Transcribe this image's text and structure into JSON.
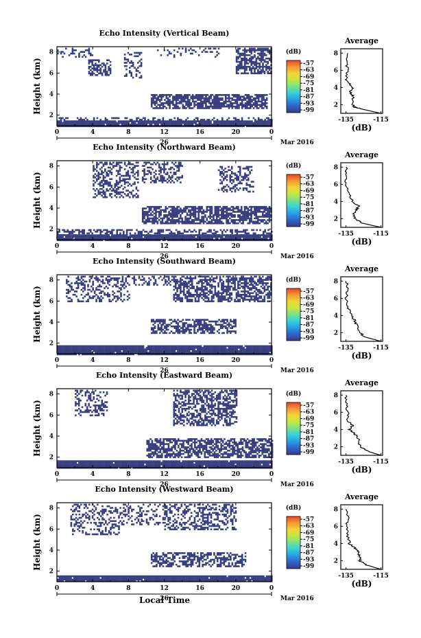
{
  "colors": {
    "echo": "#383f7e",
    "colorbar": [
      "#3a3a8c",
      "#2f63c8",
      "#2a9ee0",
      "#38d0d8",
      "#7be08a",
      "#c2e842",
      "#f4d43a",
      "#f59a35",
      "#e8452e"
    ]
  },
  "colorbar": {
    "unit_label": "(dB)",
    "tick_labels": [
      "-57",
      "-63",
      "-69",
      "-75",
      "-81",
      "-87",
      "-93",
      "-99"
    ]
  },
  "x_axis": {
    "tick_labels": [
      "0",
      "4",
      "8",
      "12",
      "16",
      "20",
      "0"
    ],
    "date_label": "26",
    "month_label": "Mar 2016",
    "xlabel": "Local Time"
  },
  "y_axis": {
    "label": "Height (km)",
    "tick_labels": [
      "2",
      "4",
      "6",
      "8"
    ]
  },
  "average_panel": {
    "title": "Average",
    "xlabel": "(dB)",
    "tick_labels": [
      "-135",
      "-115"
    ],
    "y_tick_labels": [
      "2",
      "4",
      "6",
      "8"
    ]
  },
  "panels": [
    {
      "title": "Echo Intensity (Vertical Beam)"
    },
    {
      "title": "Echo Intensity (Northward Beam)"
    },
    {
      "title": "Echo Intensity (Southward Beam)"
    },
    {
      "title": "Echo Intensity (Eastward Beam)"
    },
    {
      "title": "Echo Intensity (Westward Beam)"
    }
  ],
  "chart_data": [
    {
      "type": "heatmap",
      "beam": "Vertical",
      "x_range_hours": [
        0,
        24
      ],
      "y_range_km": [
        1,
        8.5
      ],
      "color_range_db": [
        -99,
        -57
      ],
      "echo_layers": [
        {
          "x0": 0,
          "x1": 24,
          "y0": 1.0,
          "y1": 1.5,
          "density": 0.97
        },
        {
          "x0": 0,
          "x1": 24,
          "y0": 1.5,
          "y1": 1.8,
          "density": 0.35
        },
        {
          "x0": 10.5,
          "x1": 23.5,
          "y0": 2.7,
          "y1": 4.0,
          "density": 0.75
        },
        {
          "x0": 3.5,
          "x1": 6,
          "y0": 5.8,
          "y1": 7.3,
          "density": 0.55
        },
        {
          "x0": 7.5,
          "x1": 9.5,
          "y0": 5.5,
          "y1": 8.0,
          "density": 0.3
        },
        {
          "x0": 20,
          "x1": 24,
          "y0": 6.0,
          "y1": 8.4,
          "density": 0.65
        },
        {
          "x0": 0,
          "x1": 4,
          "y0": 7.5,
          "y1": 8.4,
          "density": 0.25
        },
        {
          "x0": 11,
          "x1": 18,
          "y0": 7.5,
          "y1": 8.4,
          "density": 0.2
        }
      ],
      "average_profile": {
        "x_range_db": [
          -138,
          -114
        ],
        "height_km": [
          1.0,
          1.5,
          1.7,
          2.0,
          3.0,
          3.5,
          4.0,
          4.5,
          5.0,
          6.0,
          7.0,
          8.0
        ],
        "db": [
          -115,
          -126,
          -130,
          -131,
          -131,
          -133,
          -131,
          -133,
          -135,
          -134,
          -135,
          -134
        ]
      }
    },
    {
      "type": "heatmap",
      "beam": "Northward",
      "x_range_hours": [
        0,
        24
      ],
      "y_range_km": [
        1,
        8.5
      ],
      "color_range_db": [
        -99,
        -57
      ],
      "echo_layers": [
        {
          "x0": 0,
          "x1": 24,
          "y0": 1.0,
          "y1": 1.5,
          "density": 0.97
        },
        {
          "x0": 0,
          "x1": 24,
          "y0": 1.5,
          "y1": 2.0,
          "density": 0.45
        },
        {
          "x0": 9.5,
          "x1": 24,
          "y0": 2.5,
          "y1": 4.2,
          "density": 0.7
        },
        {
          "x0": 4,
          "x1": 9,
          "y0": 5.0,
          "y1": 8.4,
          "density": 0.45
        },
        {
          "x0": 9.5,
          "x1": 14,
          "y0": 6.5,
          "y1": 8.4,
          "density": 0.4
        },
        {
          "x0": 18,
          "x1": 22,
          "y0": 5.5,
          "y1": 8.0,
          "density": 0.35
        }
      ],
      "average_profile": {
        "x_range_db": [
          -138,
          -114
        ],
        "height_km": [
          1.0,
          1.5,
          2.0,
          2.5,
          3.0,
          3.5,
          4.0,
          5.0,
          6.0,
          7.0,
          8.0
        ],
        "db": [
          -115,
          -126,
          -130,
          -131,
          -129,
          -128,
          -131,
          -134,
          -135,
          -135,
          -135
        ]
      }
    },
    {
      "type": "heatmap",
      "beam": "Southward",
      "x_range_hours": [
        0,
        24
      ],
      "y_range_km": [
        1,
        8.5
      ],
      "color_range_db": [
        -99,
        -57
      ],
      "echo_layers": [
        {
          "x0": 0,
          "x1": 24,
          "y0": 1.0,
          "y1": 1.8,
          "density": 0.97
        },
        {
          "x0": 10.5,
          "x1": 20,
          "y0": 3.0,
          "y1": 4.3,
          "density": 0.55
        },
        {
          "x0": 1,
          "x1": 8,
          "y0": 6.0,
          "y1": 8.4,
          "density": 0.4
        },
        {
          "x0": 13,
          "x1": 24,
          "y0": 6.0,
          "y1": 8.4,
          "density": 0.6
        },
        {
          "x0": 8,
          "x1": 13,
          "y0": 7.5,
          "y1": 8.4,
          "density": 0.35
        }
      ],
      "average_profile": {
        "x_range_db": [
          -138,
          -114
        ],
        "height_km": [
          1.0,
          1.5,
          2.0,
          3.0,
          3.5,
          4.0,
          5.0,
          6.0,
          7.0,
          8.0
        ],
        "db": [
          -115,
          -124,
          -127,
          -129,
          -130,
          -132,
          -134,
          -135,
          -134,
          -135
        ]
      }
    },
    {
      "type": "heatmap",
      "beam": "Eastward",
      "x_range_hours": [
        0,
        24
      ],
      "y_range_km": [
        1,
        8.5
      ],
      "color_range_db": [
        -99,
        -57
      ],
      "echo_layers": [
        {
          "x0": 0,
          "x1": 24,
          "y0": 1.0,
          "y1": 1.7,
          "density": 0.97
        },
        {
          "x0": 10,
          "x1": 24,
          "y0": 2.0,
          "y1": 3.8,
          "density": 0.65
        },
        {
          "x0": 2,
          "x1": 5.5,
          "y0": 6.0,
          "y1": 8.4,
          "density": 0.35
        },
        {
          "x0": 13,
          "x1": 20,
          "y0": 5.0,
          "y1": 8.4,
          "density": 0.55
        }
      ],
      "average_profile": {
        "x_range_db": [
          -138,
          -114
        ],
        "height_km": [
          1.0,
          1.5,
          2.0,
          3.0,
          3.5,
          4.0,
          4.5,
          5.0,
          6.0,
          7.0,
          8.0
        ],
        "db": [
          -115,
          -123,
          -127,
          -128,
          -130,
          -133,
          -131,
          -134,
          -134,
          -135,
          -135
        ]
      }
    },
    {
      "type": "heatmap",
      "beam": "Westward",
      "x_range_hours": [
        0,
        24
      ],
      "y_range_km": [
        1,
        8.5
      ],
      "color_range_db": [
        -99,
        -57
      ],
      "echo_layers": [
        {
          "x0": 0,
          "x1": 24,
          "y0": 1.0,
          "y1": 1.6,
          "density": 0.97
        },
        {
          "x0": 10.5,
          "x1": 21,
          "y0": 2.5,
          "y1": 3.8,
          "density": 0.55
        },
        {
          "x0": 1.5,
          "x1": 7,
          "y0": 5.5,
          "y1": 8.4,
          "density": 0.35
        },
        {
          "x0": 7,
          "x1": 12,
          "y0": 6.5,
          "y1": 8.4,
          "density": 0.3
        },
        {
          "x0": 12,
          "x1": 20,
          "y0": 6.0,
          "y1": 8.4,
          "density": 0.4
        }
      ],
      "average_profile": {
        "x_range_db": [
          -138,
          -114
        ],
        "height_km": [
          1.0,
          1.5,
          2.0,
          2.5,
          3.0,
          3.5,
          4.0,
          5.0,
          6.0,
          7.0,
          8.0
        ],
        "db": [
          -115,
          -123,
          -127,
          -127,
          -128,
          -130,
          -133,
          -134,
          -135,
          -134,
          -135
        ]
      }
    }
  ]
}
